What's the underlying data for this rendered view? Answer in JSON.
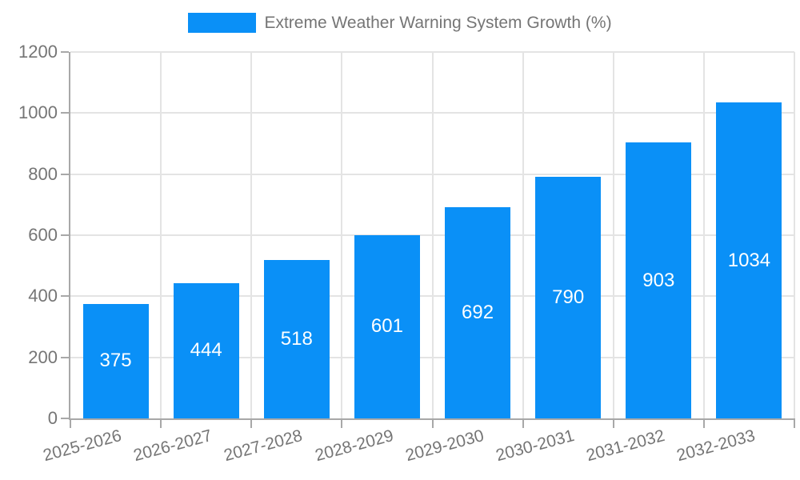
{
  "chart_data": {
    "type": "bar",
    "title": "Extreme Weather Warning System Growth (%)",
    "legend": {
      "position": "top",
      "entries": [
        "Extreme Weather Warning System Growth (%)"
      ]
    },
    "categories": [
      "2025-2026",
      "2026-2027",
      "2027-2028",
      "2028-2029",
      "2029-2030",
      "2030-2031",
      "2031-2032",
      "2032-2033"
    ],
    "series": [
      {
        "name": "Extreme Weather Warning System Growth (%)",
        "values": [
          375,
          444,
          518,
          601,
          692,
          790,
          903,
          1034
        ]
      }
    ],
    "data_labels": [
      "375",
      "444",
      "518",
      "601",
      "692",
      "790",
      "903",
      "1034"
    ],
    "xlabel": "",
    "ylabel": "",
    "ylim": [
      0,
      1200
    ],
    "y_ticks": [
      0,
      200,
      400,
      600,
      800,
      1000,
      1200
    ],
    "grid": true,
    "x_label_rotation_deg": -15,
    "colors": {
      "bar": "#0a90f7",
      "bar_label_text": "#ffffff",
      "axis_text": "#757575",
      "axis_line": "#a8a8a8",
      "gridline": "#e4e4e4",
      "background": "#ffffff"
    }
  }
}
